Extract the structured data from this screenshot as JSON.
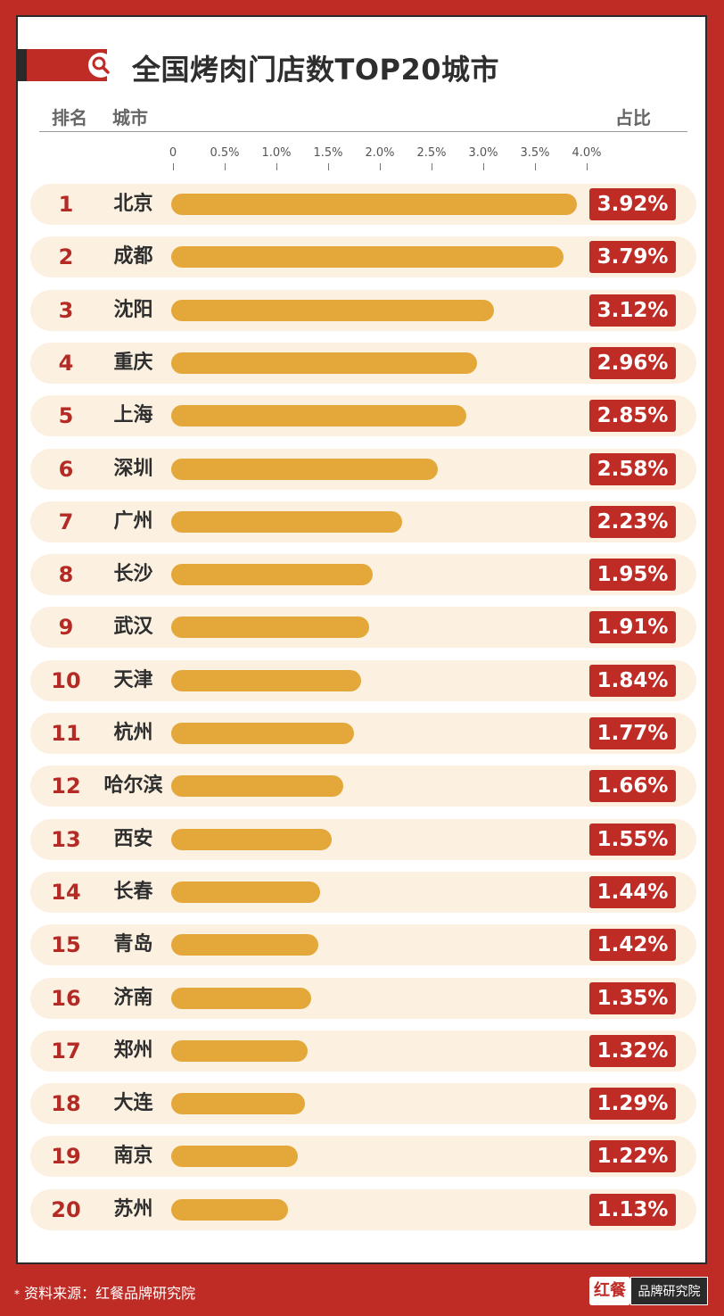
{
  "title": "全国烤肉门店数TOP20城市",
  "headers": {
    "rank": "排名",
    "city": "城市",
    "share": "占比"
  },
  "brand_color": "#bf2b25",
  "bar_color": "#e4a83a",
  "footer": {
    "star": "*",
    "source": "资料来源：红餐品牌研究院",
    "logo_mark": "红餐",
    "logo_name": "品牌研究院"
  },
  "chart_data": {
    "type": "bar",
    "orientation": "horizontal",
    "title": "全国烤肉门店数TOP20城市",
    "xlim": [
      0,
      4.0
    ],
    "ticks": [
      {
        "value": 0,
        "label": "0"
      },
      {
        "value": 0.5,
        "label": "0.5%"
      },
      {
        "value": 1.0,
        "label": "1.0%"
      },
      {
        "value": 1.5,
        "label": "1.5%"
      },
      {
        "value": 2.0,
        "label": "2.0%"
      },
      {
        "value": 2.5,
        "label": "2.5%"
      },
      {
        "value": 3.0,
        "label": "3.0%"
      },
      {
        "value": 3.5,
        "label": "3.5%"
      },
      {
        "value": 4.0,
        "label": "4.0%"
      }
    ],
    "rows": [
      {
        "rank": "1",
        "city": "北京",
        "value": 3.92,
        "label": "3.92%"
      },
      {
        "rank": "2",
        "city": "成都",
        "value": 3.79,
        "label": "3.79%"
      },
      {
        "rank": "3",
        "city": "沈阳",
        "value": 3.12,
        "label": "3.12%"
      },
      {
        "rank": "4",
        "city": "重庆",
        "value": 2.96,
        "label": "2.96%"
      },
      {
        "rank": "5",
        "city": "上海",
        "value": 2.85,
        "label": "2.85%"
      },
      {
        "rank": "6",
        "city": "深圳",
        "value": 2.58,
        "label": "2.58%"
      },
      {
        "rank": "7",
        "city": "广州",
        "value": 2.23,
        "label": "2.23%"
      },
      {
        "rank": "8",
        "city": "长沙",
        "value": 1.95,
        "label": "1.95%"
      },
      {
        "rank": "9",
        "city": "武汉",
        "value": 1.91,
        "label": "1.91%"
      },
      {
        "rank": "10",
        "city": "天津",
        "value": 1.84,
        "label": "1.84%"
      },
      {
        "rank": "11",
        "city": "杭州",
        "value": 1.77,
        "label": "1.77%"
      },
      {
        "rank": "12",
        "city": "哈尔滨",
        "value": 1.66,
        "label": "1.66%"
      },
      {
        "rank": "13",
        "city": "西安",
        "value": 1.55,
        "label": "1.55%"
      },
      {
        "rank": "14",
        "city": "长春",
        "value": 1.44,
        "label": "1.44%"
      },
      {
        "rank": "15",
        "city": "青岛",
        "value": 1.42,
        "label": "1.42%"
      },
      {
        "rank": "16",
        "city": "济南",
        "value": 1.35,
        "label": "1.35%"
      },
      {
        "rank": "17",
        "city": "郑州",
        "value": 1.32,
        "label": "1.32%"
      },
      {
        "rank": "18",
        "city": "大连",
        "value": 1.29,
        "label": "1.29%"
      },
      {
        "rank": "19",
        "city": "南京",
        "value": 1.22,
        "label": "1.22%"
      },
      {
        "rank": "20",
        "city": "苏州",
        "value": 1.13,
        "label": "1.13%"
      }
    ]
  }
}
